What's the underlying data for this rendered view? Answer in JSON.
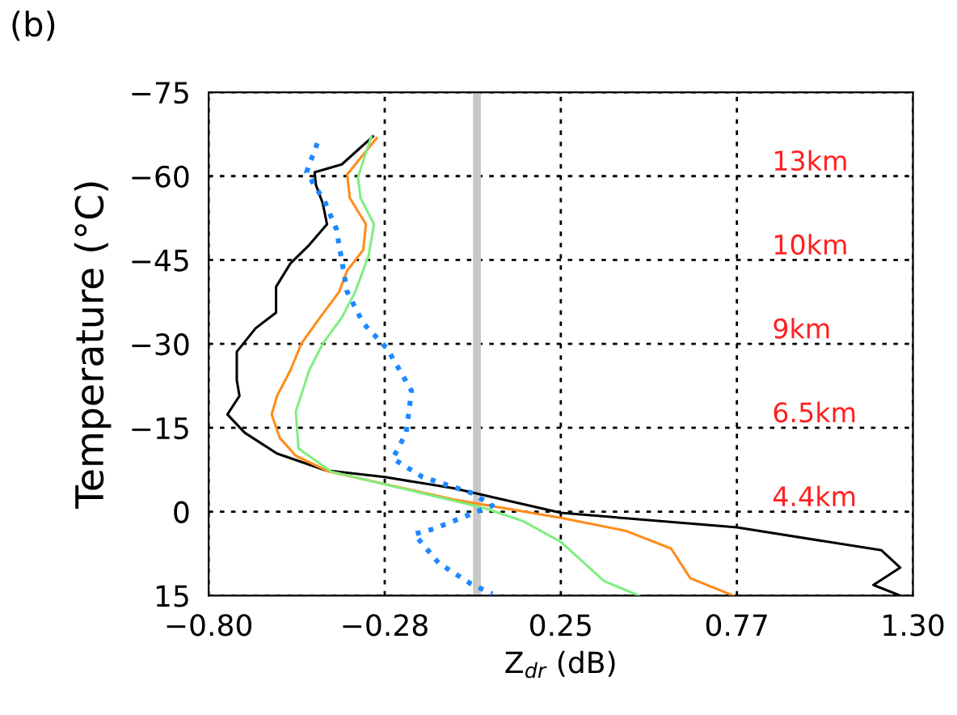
{
  "chart_data": {
    "type": "line",
    "xlabel": "Z$_{dr}$ (dB)",
    "ylabel": "Temperature (°C)",
    "xlim": [
      -0.8,
      1.3
    ],
    "xticks": [
      {
        "value": -0.8,
        "label": "−0.80"
      },
      {
        "value": -0.275,
        "label": "−0.28"
      },
      {
        "value": 0.25,
        "label": "0.25"
      },
      {
        "value": 0.775,
        "label": "0.77"
      },
      {
        "value": 1.3,
        "label": "1.30"
      }
    ],
    "ylim": [
      15,
      -75
    ],
    "yticks": [
      {
        "value": -75,
        "label": "−75"
      },
      {
        "value": -60,
        "label": "−60"
      },
      {
        "value": -45,
        "label": "−45"
      },
      {
        "value": -30,
        "label": "−30"
      },
      {
        "value": -15,
        "label": "−15"
      },
      {
        "value": 0,
        "label": "0"
      },
      {
        "value": 15,
        "label": "15"
      }
    ],
    "grid": true,
    "marker": "none",
    "ref_lines": [
      {
        "axis": "x",
        "value": 0,
        "color": "#c8c8c8"
      }
    ],
    "annotations": [
      "(b)",
      "13km",
      "10km",
      "9km",
      "6.5km",
      "4.4km"
    ],
    "series": [
      {
        "color": "#000000",
        "line_style": "solid",
        "x": [
          -0.31,
          -0.403,
          -0.484,
          -0.48,
          -0.46,
          -0.447,
          -0.5,
          -0.556,
          -0.599,
          -0.599,
          -0.66,
          -0.716,
          -0.716,
          -0.708,
          -0.744,
          -0.692,
          -0.596,
          -0.451,
          -0.275,
          -0.071,
          0.25,
          0.775,
          1.206,
          1.262,
          1.182,
          1.262
        ],
        "values": [
          -67.1,
          -62.1,
          -60.7,
          -58.4,
          -55.2,
          -51.4,
          -47.7,
          -44.4,
          -40.2,
          -35.6,
          -32.8,
          -28.6,
          -23.5,
          -20.7,
          -17.4,
          -14.1,
          -10.4,
          -7.4,
          -6.2,
          -4.2,
          0.2,
          2.8,
          6.9,
          10.0,
          13.1,
          15.0
        ]
      },
      {
        "color": "#ff8c1a",
        "line_style": "solid",
        "x": [
          -0.299,
          -0.387,
          -0.379,
          -0.331,
          -0.339,
          -0.387,
          -0.411,
          -0.468,
          -0.524,
          -0.556,
          -0.596,
          -0.612,
          -0.588,
          -0.54,
          -0.443,
          -0.071,
          0.25,
          0.443,
          0.579,
          0.636,
          0.764
        ],
        "values": [
          -66.8,
          -60.3,
          -56.1,
          -51.4,
          -46.8,
          -43.1,
          -39.3,
          -34.7,
          -30.0,
          -25.3,
          -20.7,
          -17.4,
          -13.2,
          -10.0,
          -7.2,
          -2.2,
          1.1,
          3.4,
          6.6,
          11.9,
          15.0
        ]
      },
      {
        "color": "#80ee80",
        "line_style": "solid",
        "x": [
          -0.315,
          -0.355,
          -0.347,
          -0.307,
          -0.323,
          -0.363,
          -0.403,
          -0.46,
          -0.5,
          -0.54,
          -0.532,
          -0.436,
          0.025,
          0.138,
          0.25,
          0.379,
          0.483
        ],
        "values": [
          -67.1,
          -59.8,
          -56.1,
          -51.4,
          -45.8,
          -39.3,
          -34.7,
          -30.0,
          -25.3,
          -17.9,
          -11.3,
          -7.2,
          -0.6,
          1.7,
          5.4,
          12.4,
          15.0
        ]
      },
      {
        "color": "#1e88ff",
        "line_style": "dotted",
        "x": [
          -0.476,
          -0.508,
          -0.452,
          -0.419,
          -0.403,
          -0.387,
          -0.339,
          -0.267,
          -0.195,
          -0.211,
          -0.251,
          -0.162,
          -0.018,
          0.046,
          -0.13,
          -0.187,
          -0.114,
          -0.018,
          0.046
        ],
        "values": [
          -65.9,
          -60.7,
          -55.2,
          -50.5,
          -44.9,
          -39.3,
          -33.7,
          -29.1,
          -21.6,
          -14.1,
          -9.5,
          -6.2,
          -3.4,
          -1.1,
          3.1,
          4.0,
          9.2,
          12.9,
          14.7
        ]
      }
    ]
  }
}
